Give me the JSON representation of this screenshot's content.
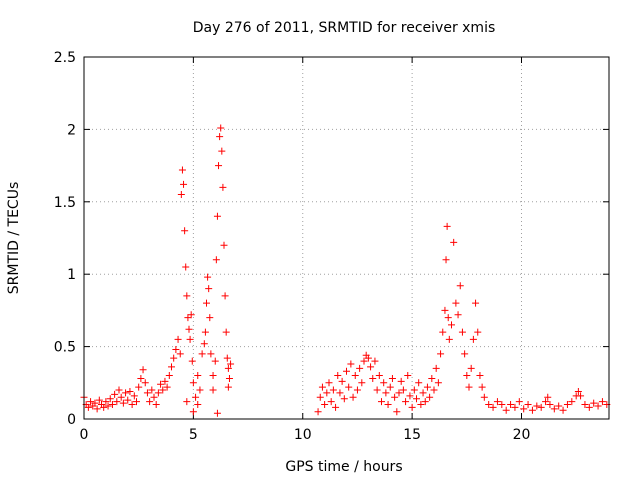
{
  "chart_data": {
    "type": "scatter",
    "title": "Day 276 of 2011, SRMTID for receiver xmis",
    "xlabel": "GPS time / hours",
    "ylabel": "SRMTID / TECUs",
    "xlim": [
      0,
      24
    ],
    "ylim": [
      0,
      2.5
    ],
    "x_ticks": [
      0,
      5,
      10,
      15,
      20
    ],
    "x_tick_labels": [
      "0",
      "5",
      "10",
      "15",
      "20"
    ],
    "y_ticks": [
      0,
      0.5,
      1,
      1.5,
      2,
      2.5
    ],
    "y_tick_labels": [
      "0",
      "0.5",
      "1",
      "1.5",
      "2",
      "2.5"
    ],
    "grid": true,
    "marker": "+",
    "color": "#ff0000",
    "series": [
      {
        "name": "SRMTID",
        "points": [
          [
            0.0,
            0.15
          ],
          [
            0.1,
            0.1
          ],
          [
            0.2,
            0.08
          ],
          [
            0.3,
            0.12
          ],
          [
            0.4,
            0.09
          ],
          [
            0.5,
            0.11
          ],
          [
            0.6,
            0.07
          ],
          [
            0.7,
            0.13
          ],
          [
            0.8,
            0.1
          ],
          [
            0.9,
            0.08
          ],
          [
            1.0,
            0.12
          ],
          [
            1.1,
            0.09
          ],
          [
            1.2,
            0.14
          ],
          [
            1.3,
            0.1
          ],
          [
            1.4,
            0.17
          ],
          [
            1.5,
            0.12
          ],
          [
            1.6,
            0.2
          ],
          [
            1.7,
            0.15
          ],
          [
            1.8,
            0.11
          ],
          [
            1.9,
            0.18
          ],
          [
            2.0,
            0.13
          ],
          [
            2.1,
            0.19
          ],
          [
            2.2,
            0.1
          ],
          [
            2.3,
            0.16
          ],
          [
            2.4,
            0.12
          ],
          [
            2.5,
            0.22
          ],
          [
            2.6,
            0.28
          ],
          [
            2.7,
            0.34
          ],
          [
            2.8,
            0.25
          ],
          [
            2.9,
            0.18
          ],
          [
            3.0,
            0.12
          ],
          [
            3.1,
            0.2
          ],
          [
            3.2,
            0.15
          ],
          [
            3.3,
            0.1
          ],
          [
            3.4,
            0.18
          ],
          [
            3.5,
            0.24
          ],
          [
            3.6,
            0.2
          ],
          [
            3.7,
            0.26
          ],
          [
            3.8,
            0.22
          ],
          [
            3.9,
            0.3
          ],
          [
            4.0,
            0.36
          ],
          [
            4.1,
            0.42
          ],
          [
            4.2,
            0.48
          ],
          [
            4.3,
            0.55
          ],
          [
            4.4,
            0.45
          ],
          [
            4.45,
            1.55
          ],
          [
            4.5,
            1.72
          ],
          [
            4.55,
            1.62
          ],
          [
            4.6,
            1.3
          ],
          [
            4.65,
            1.05
          ],
          [
            4.7,
            0.85
          ],
          [
            4.75,
            0.7
          ],
          [
            4.8,
            0.62
          ],
          [
            4.85,
            0.55
          ],
          [
            4.9,
            0.72
          ],
          [
            4.95,
            0.4
          ],
          [
            5.0,
            0.25
          ],
          [
            5.1,
            0.15
          ],
          [
            5.2,
            0.3
          ],
          [
            5.3,
            0.2
          ],
          [
            5.4,
            0.45
          ],
          [
            5.5,
            0.52
          ],
          [
            5.55,
            0.6
          ],
          [
            5.6,
            0.8
          ],
          [
            5.65,
            0.98
          ],
          [
            5.7,
            0.9
          ],
          [
            5.75,
            0.7
          ],
          [
            5.8,
            0.45
          ],
          [
            5.9,
            0.3
          ],
          [
            6.0,
            0.4
          ],
          [
            6.05,
            1.1
          ],
          [
            6.1,
            1.4
          ],
          [
            6.15,
            1.75
          ],
          [
            6.2,
            1.95
          ],
          [
            6.25,
            2.01
          ],
          [
            6.3,
            1.85
          ],
          [
            6.35,
            1.6
          ],
          [
            6.4,
            1.2
          ],
          [
            6.45,
            0.85
          ],
          [
            6.5,
            0.6
          ],
          [
            6.55,
            0.42
          ],
          [
            6.6,
            0.35
          ],
          [
            6.65,
            0.28
          ],
          [
            6.7,
            0.38
          ],
          [
            6.1,
            0.04
          ],
          [
            5.2,
            0.1
          ],
          [
            5.0,
            0.05
          ],
          [
            4.7,
            0.12
          ],
          [
            5.9,
            0.2
          ],
          [
            6.6,
            0.22
          ],
          [
            10.7,
            0.05
          ],
          [
            10.8,
            0.15
          ],
          [
            10.9,
            0.22
          ],
          [
            11.0,
            0.1
          ],
          [
            11.1,
            0.18
          ],
          [
            11.2,
            0.25
          ],
          [
            11.3,
            0.12
          ],
          [
            11.4,
            0.2
          ],
          [
            11.5,
            0.08
          ],
          [
            11.6,
            0.3
          ],
          [
            11.7,
            0.18
          ],
          [
            11.8,
            0.26
          ],
          [
            11.9,
            0.14
          ],
          [
            12.0,
            0.33
          ],
          [
            12.1,
            0.22
          ],
          [
            12.2,
            0.38
          ],
          [
            12.3,
            0.15
          ],
          [
            12.4,
            0.3
          ],
          [
            12.5,
            0.2
          ],
          [
            12.6,
            0.35
          ],
          [
            12.7,
            0.25
          ],
          [
            12.8,
            0.4
          ],
          [
            12.9,
            0.44
          ],
          [
            13.0,
            0.42
          ],
          [
            13.1,
            0.36
          ],
          [
            13.2,
            0.28
          ],
          [
            13.3,
            0.4
          ],
          [
            13.4,
            0.2
          ],
          [
            13.5,
            0.3
          ],
          [
            13.6,
            0.12
          ],
          [
            13.7,
            0.25
          ],
          [
            13.8,
            0.18
          ],
          [
            13.9,
            0.1
          ],
          [
            14.0,
            0.22
          ],
          [
            14.1,
            0.28
          ],
          [
            14.2,
            0.15
          ],
          [
            14.3,
            0.05
          ],
          [
            14.4,
            0.18
          ],
          [
            14.5,
            0.26
          ],
          [
            14.6,
            0.2
          ],
          [
            14.7,
            0.12
          ],
          [
            14.8,
            0.3
          ],
          [
            14.9,
            0.16
          ],
          [
            15.0,
            0.08
          ],
          [
            15.1,
            0.2
          ],
          [
            15.2,
            0.14
          ],
          [
            15.3,
            0.25
          ],
          [
            15.4,
            0.1
          ],
          [
            15.5,
            0.18
          ],
          [
            15.6,
            0.12
          ],
          [
            15.7,
            0.22
          ],
          [
            15.8,
            0.15
          ],
          [
            15.9,
            0.28
          ],
          [
            16.0,
            0.2
          ],
          [
            16.1,
            0.35
          ],
          [
            16.2,
            0.25
          ],
          [
            16.3,
            0.45
          ],
          [
            16.4,
            0.6
          ],
          [
            16.5,
            0.75
          ],
          [
            16.55,
            1.1
          ],
          [
            16.6,
            1.33
          ],
          [
            16.65,
            0.7
          ],
          [
            16.7,
            0.55
          ],
          [
            16.8,
            0.65
          ],
          [
            16.9,
            1.22
          ],
          [
            17.0,
            0.8
          ],
          [
            17.1,
            0.72
          ],
          [
            17.2,
            0.92
          ],
          [
            17.3,
            0.6
          ],
          [
            17.4,
            0.45
          ],
          [
            17.5,
            0.3
          ],
          [
            17.6,
            0.22
          ],
          [
            17.7,
            0.35
          ],
          [
            17.8,
            0.55
          ],
          [
            17.9,
            0.8
          ],
          [
            18.0,
            0.6
          ],
          [
            18.1,
            0.3
          ],
          [
            18.2,
            0.22
          ],
          [
            18.3,
            0.15
          ],
          [
            18.5,
            0.1
          ],
          [
            18.7,
            0.08
          ],
          [
            18.9,
            0.12
          ],
          [
            19.1,
            0.1
          ],
          [
            19.3,
            0.06
          ],
          [
            19.5,
            0.1
          ],
          [
            19.7,
            0.08
          ],
          [
            19.9,
            0.12
          ],
          [
            20.1,
            0.07
          ],
          [
            20.3,
            0.1
          ],
          [
            20.5,
            0.06
          ],
          [
            20.7,
            0.09
          ],
          [
            20.9,
            0.08
          ],
          [
            21.1,
            0.12
          ],
          [
            21.2,
            0.15
          ],
          [
            21.3,
            0.1
          ],
          [
            21.5,
            0.07
          ],
          [
            21.7,
            0.09
          ],
          [
            21.9,
            0.06
          ],
          [
            22.1,
            0.1
          ],
          [
            22.3,
            0.12
          ],
          [
            22.5,
            0.16
          ],
          [
            22.6,
            0.19
          ],
          [
            22.7,
            0.16
          ],
          [
            22.9,
            0.1
          ],
          [
            23.1,
            0.08
          ],
          [
            23.3,
            0.11
          ],
          [
            23.5,
            0.09
          ],
          [
            23.7,
            0.12
          ],
          [
            23.9,
            0.1
          ]
        ]
      }
    ]
  }
}
